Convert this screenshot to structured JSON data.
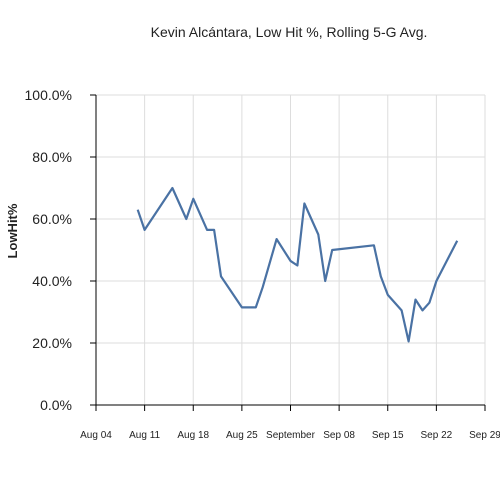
{
  "chart_data": {
    "type": "line",
    "title": "Kevin Alcántara, Low Hit %, Rolling 5-G Avg.",
    "xlabel": "",
    "ylabel": "LowHit%",
    "ylim": [
      0,
      100
    ],
    "yticks": [
      "0.0%",
      "20.0%",
      "40.0%",
      "60.0%",
      "80.0%",
      "100.0%"
    ],
    "xticks": [
      "Aug 04",
      "Aug 11",
      "Aug 18",
      "Aug 25",
      "September",
      "Sep 08",
      "Sep 15",
      "Sep 22",
      "Sep 29"
    ],
    "grid": true,
    "colors": {
      "line": "#4a72a4",
      "grid": "#dddddd"
    },
    "series": [
      {
        "x": [
          "2024-08-10",
          "2024-08-11",
          "2024-08-15",
          "2024-08-17",
          "2024-08-18",
          "2024-08-20",
          "2024-08-21",
          "2024-08-22",
          "2024-08-25",
          "2024-08-27",
          "2024-08-28",
          "2024-08-30",
          "2024-09-01",
          "2024-09-02",
          "2024-09-03",
          "2024-09-05",
          "2024-09-06",
          "2024-09-07",
          "2024-09-13",
          "2024-09-14",
          "2024-09-15",
          "2024-09-17",
          "2024-09-18",
          "2024-09-19",
          "2024-09-20",
          "2024-09-21",
          "2024-09-22",
          "2024-09-25"
        ],
        "values": [
          63,
          56.5,
          70,
          60,
          66.5,
          56.5,
          56.5,
          41.5,
          31.5,
          31.5,
          38,
          53.5,
          46.5,
          45,
          65,
          55,
          40,
          50,
          51.5,
          41.5,
          35.5,
          30.5,
          20.5,
          34,
          30.5,
          33,
          40,
          53
        ]
      }
    ]
  }
}
